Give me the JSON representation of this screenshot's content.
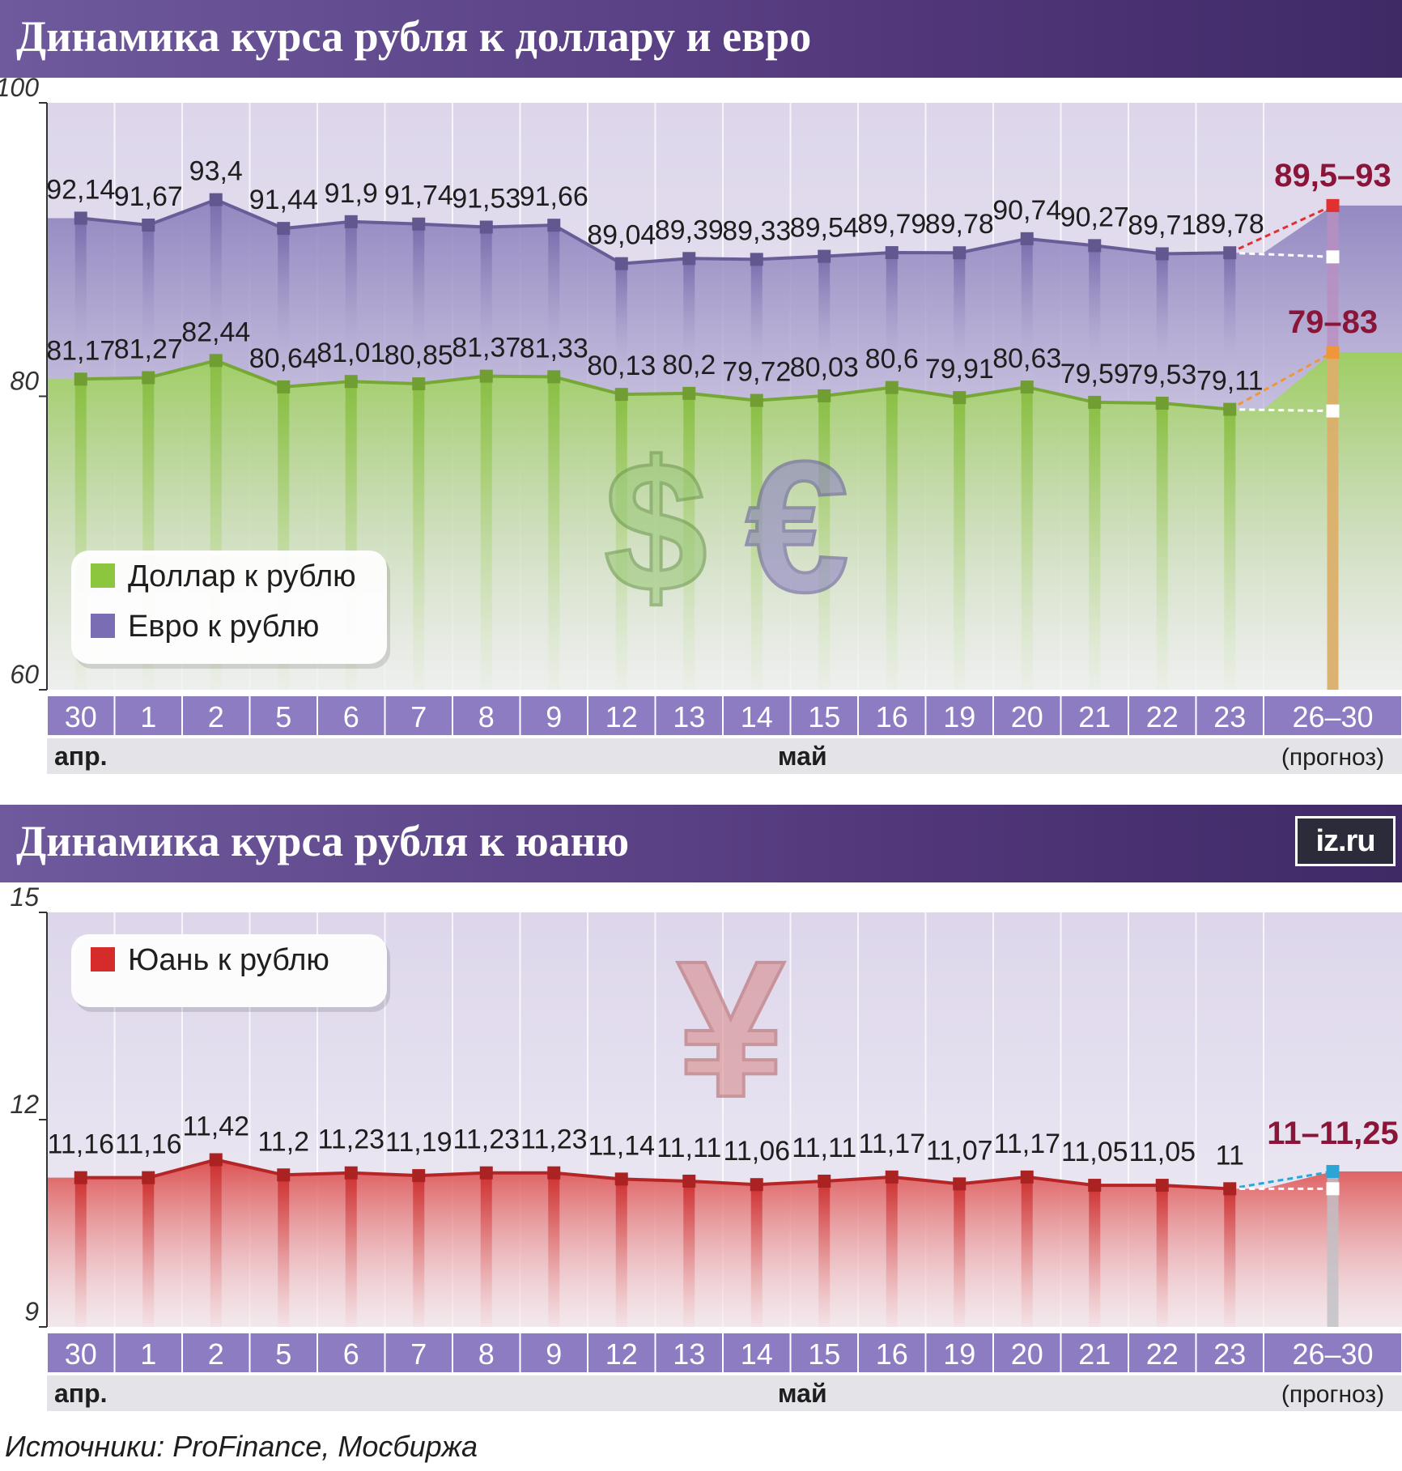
{
  "titles": {
    "top": "Динамика курса рубля к доллару и евро",
    "bottom": "Динамика курса рубля к юаню"
  },
  "source": "Источники: ProFinance, Мосбиржа",
  "logo": "iz.ru",
  "colors": {
    "dollar": "#8cc63f",
    "euro": "#7b6db3",
    "yuan": "#d62b2b",
    "title_bar": "#54397d",
    "forecast_max_label": "#8a1538"
  },
  "chart_data": [
    {
      "type": "line",
      "title": "Динамика курса рубля к доллару и евро",
      "categories": [
        "30",
        "1",
        "2",
        "5",
        "6",
        "7",
        "8",
        "9",
        "12",
        "13",
        "14",
        "15",
        "16",
        "19",
        "20",
        "21",
        "22",
        "23"
      ],
      "forecast_category": "26–30",
      "month_labels": [
        "апр.",
        "май"
      ],
      "forecast_note": "(прогноз)",
      "ylim": [
        60,
        100
      ],
      "yticks": [
        "100",
        "80",
        "60"
      ],
      "grid": true,
      "legend_position": "bottom-left",
      "series": [
        {
          "name": "Евро к рублю",
          "values": [
            92.14,
            91.67,
            93.4,
            91.44,
            91.9,
            91.74,
            91.53,
            91.66,
            89.04,
            89.39,
            89.33,
            89.54,
            89.79,
            89.78,
            90.74,
            90.27,
            89.71,
            89.78
          ],
          "labels": [
            "92,14",
            "91,67",
            "93,4",
            "91,44",
            "91,9",
            "91,74",
            "91,53",
            "91,66",
            "89,04",
            "89,39",
            "89,33",
            "89,54",
            "89,79",
            "89,78",
            "90,74",
            "90,27",
            "89,71",
            "89,78"
          ],
          "forecast": [
            89.5,
            93
          ],
          "forecast_label": "89,5–93"
        },
        {
          "name": "Доллар к рублю",
          "values": [
            81.17,
            81.27,
            82.44,
            80.64,
            81.01,
            80.85,
            81.37,
            81.33,
            80.13,
            80.2,
            79.72,
            80.03,
            80.6,
            79.91,
            80.63,
            79.59,
            79.53,
            79.11
          ],
          "labels": [
            "81,17",
            "81,27",
            "82,44",
            "80,64",
            "81,01",
            "80,85",
            "81,37",
            "81,33",
            "80,13",
            "80,2",
            "79,72",
            "80,03",
            "80,6",
            "79,91",
            "80,63",
            "79,59",
            "79,53",
            "79,11"
          ],
          "forecast": [
            79,
            83
          ],
          "forecast_label": "79–83"
        }
      ],
      "legend": [
        "Доллар к рублю",
        "Евро к рублю"
      ]
    },
    {
      "type": "line",
      "title": "Динамика курса рубля к юаню",
      "categories": [
        "30",
        "1",
        "2",
        "5",
        "6",
        "7",
        "8",
        "9",
        "12",
        "13",
        "14",
        "15",
        "16",
        "19",
        "20",
        "21",
        "22",
        "23"
      ],
      "forecast_category": "26–30",
      "month_labels": [
        "апр.",
        "май"
      ],
      "forecast_note": "(прогноз)",
      "ylim": [
        9,
        15
      ],
      "yticks": [
        "15",
        "12",
        "9"
      ],
      "grid": true,
      "legend_position": "top-left",
      "series": [
        {
          "name": "Юань к рублю",
          "values": [
            11.16,
            11.16,
            11.42,
            11.2,
            11.23,
            11.19,
            11.23,
            11.23,
            11.14,
            11.11,
            11.06,
            11.11,
            11.17,
            11.07,
            11.17,
            11.05,
            11.05,
            11.0
          ],
          "labels": [
            "11,16",
            "11,16",
            "11,42",
            "11,2",
            "11,23",
            "11,19",
            "11,23",
            "11,23",
            "11,14",
            "11,11",
            "11,06",
            "11,11",
            "11,17",
            "11,07",
            "11,17",
            "11,05",
            "11,05",
            "11"
          ],
          "forecast": [
            11,
            11.25
          ],
          "forecast_label": "11–11,25"
        }
      ],
      "legend": [
        "Юань к рублю"
      ]
    }
  ]
}
